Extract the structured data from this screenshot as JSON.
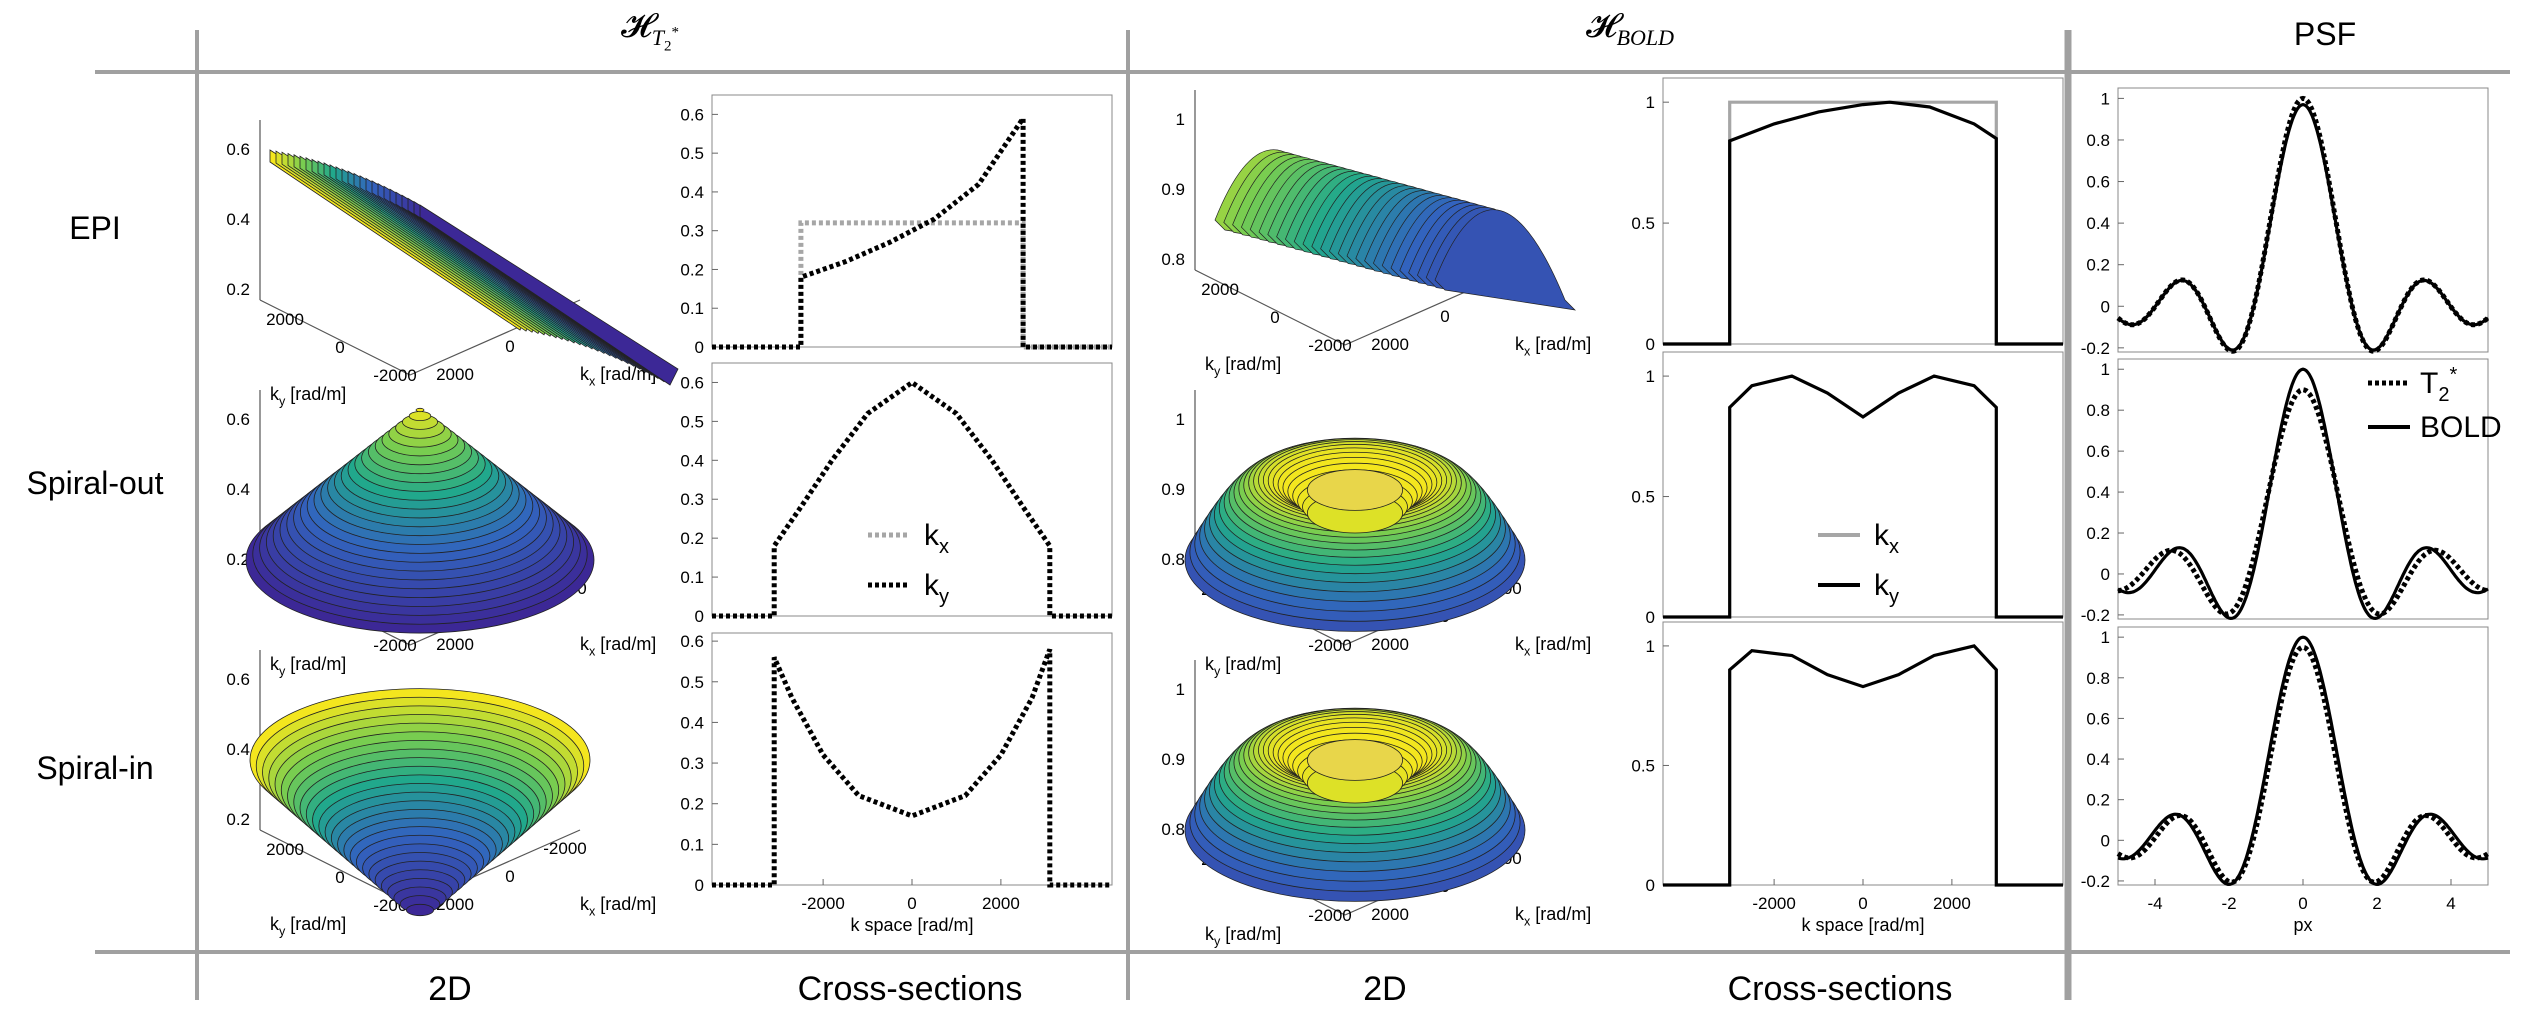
{
  "headers": {
    "col1_main": "𝓗",
    "col1_sub": "T",
    "col1_subsub": "2",
    "col1_sup": "*",
    "col2_main": "𝓗",
    "col2_sub": "BOLD",
    "col3": "PSF"
  },
  "rows": [
    "EPI",
    "Spiral-out",
    "Spiral-in"
  ],
  "footers": [
    "2D",
    "Cross-sections",
    "2D",
    "Cross-sections"
  ],
  "axis_labels": {
    "ky": "k",
    "ky_sub": "y",
    "kx": "k",
    "kx_sub": "x",
    "unit": "[rad/m]",
    "kspace": "k space [rad/m]",
    "px": "px"
  },
  "legend_t2": {
    "kx": "k",
    "kx_sub": "x",
    "ky": "k",
    "ky_sub": "y"
  },
  "legend_bold": {
    "kx": "k",
    "kx_sub": "x",
    "ky": "k",
    "ky_sub": "y"
  },
  "legend_psf": {
    "t2": "T",
    "t2_sub": "2",
    "t2_sup": "*",
    "bold": "BOLD"
  },
  "colors": {
    "grid": "#a0a0a0",
    "kx_gray": "#a6a6a6",
    "line": "#000000",
    "surf_low": "#3b2a98",
    "surf_mid": "#21a88c",
    "surf_high": "#f4e61e"
  },
  "chart_data": [
    {
      "id": "t2_epi_3d",
      "type": "surface",
      "shape": "ramp",
      "zticks": [
        0.2,
        0.4,
        0.6
      ],
      "xyticks": [
        2000,
        0,
        -2000
      ]
    },
    {
      "id": "t2_spiralout_3d",
      "type": "surface",
      "shape": "cone",
      "zticks": [
        0.2,
        0.4,
        0.6
      ],
      "xyticks": [
        2000,
        0,
        -2000
      ]
    },
    {
      "id": "t2_spiralin_3d",
      "type": "surface",
      "shape": "bowl",
      "zticks": [
        0.2,
        0.4,
        0.6
      ],
      "xyticks": [
        2000,
        0,
        -2000
      ]
    },
    {
      "id": "bold_epi_3d",
      "type": "surface",
      "shape": "ridge",
      "zticks": [
        0.8,
        0.9,
        1
      ],
      "xyticks": [
        2000,
        0,
        -2000
      ]
    },
    {
      "id": "bold_spiralout_3d",
      "type": "surface",
      "shape": "torus",
      "zticks": [
        0.8,
        0.9,
        1
      ],
      "xyticks": [
        2000,
        0,
        -2000
      ]
    },
    {
      "id": "bold_spiralin_3d",
      "type": "surface",
      "shape": "torus",
      "zticks": [
        0.8,
        0.9,
        1
      ],
      "xyticks": [
        2000,
        0,
        -2000
      ]
    },
    {
      "id": "t2_epi_cs",
      "type": "line",
      "xlim": [
        -4500,
        4500
      ],
      "ylim": [
        0,
        0.65
      ],
      "yticks": [
        0,
        0.1,
        0.2,
        0.3,
        0.4,
        0.5,
        0.6
      ],
      "series": [
        {
          "name": "kx",
          "style": "dotted-gray",
          "x": [
            -4500,
            -2500,
            -2500,
            2500,
            2500,
            4500
          ],
          "y": [
            0,
            0,
            0.32,
            0.32,
            0,
            0
          ]
        },
        {
          "name": "ky",
          "style": "dotted-black",
          "x": [
            -4500,
            -2500,
            -2500,
            -1500,
            -500,
            500,
            1500,
            2500,
            2500,
            4500
          ],
          "y": [
            0,
            0,
            0.18,
            0.22,
            0.27,
            0.33,
            0.42,
            0.59,
            0,
            0
          ]
        }
      ]
    },
    {
      "id": "t2_spiralout_cs",
      "type": "line",
      "xlim": [
        -4500,
        4500
      ],
      "ylim": [
        0,
        0.65
      ],
      "yticks": [
        0,
        0.1,
        0.2,
        0.3,
        0.4,
        0.5,
        0.6
      ],
      "series": [
        {
          "name": "ky",
          "style": "dotted-black",
          "x": [
            -4500,
            -3100,
            -3100,
            -2500,
            -1800,
            -1000,
            0,
            1000,
            1800,
            2500,
            3100,
            3100,
            4500
          ],
          "y": [
            0,
            0,
            0.18,
            0.28,
            0.4,
            0.52,
            0.6,
            0.52,
            0.4,
            0.28,
            0.18,
            0,
            0
          ]
        }
      ]
    },
    {
      "id": "t2_spiralin_cs",
      "type": "line",
      "xlim": [
        -4500,
        4500
      ],
      "ylim": [
        0,
        0.62
      ],
      "yticks": [
        0,
        0.1,
        0.2,
        0.3,
        0.4,
        0.5,
        0.6
      ],
      "xticks": [
        -2000,
        0,
        2000
      ],
      "xlabel": "k space [rad/m]",
      "series": [
        {
          "name": "ky",
          "style": "dotted-black",
          "x": [
            -4500,
            -3100,
            -3100,
            -2700,
            -2000,
            -1200,
            0,
            1200,
            2000,
            2700,
            3100,
            3100,
            4500
          ],
          "y": [
            0,
            0,
            0.56,
            0.46,
            0.32,
            0.22,
            0.17,
            0.22,
            0.32,
            0.46,
            0.58,
            0,
            0
          ]
        }
      ]
    },
    {
      "id": "bold_epi_cs",
      "type": "line",
      "xlim": [
        -4500,
        4500
      ],
      "ylim": [
        0,
        1.1
      ],
      "yticks": [
        0,
        0.5,
        1
      ],
      "series": [
        {
          "name": "kx",
          "style": "solid-gray",
          "x": [
            -4500,
            -3000,
            -3000,
            3000,
            3000,
            4500
          ],
          "y": [
            0,
            0,
            1,
            1,
            0,
            0
          ]
        },
        {
          "name": "ky",
          "style": "solid-black",
          "x": [
            -4500,
            -3000,
            -3000,
            -2000,
            -1000,
            0,
            600,
            1500,
            2500,
            3000,
            3000,
            4500
          ],
          "y": [
            0,
            0,
            0.84,
            0.91,
            0.96,
            0.99,
            1.0,
            0.98,
            0.91,
            0.85,
            0,
            0
          ]
        }
      ]
    },
    {
      "id": "bold_spiralout_cs",
      "type": "line",
      "xlim": [
        -4500,
        4500
      ],
      "ylim": [
        0,
        1.1
      ],
      "yticks": [
        0,
        0.5,
        1
      ],
      "series": [
        {
          "name": "ky",
          "style": "solid-black",
          "x": [
            -4500,
            -3000,
            -3000,
            -2500,
            -1600,
            -800,
            0,
            800,
            1600,
            2500,
            3000,
            3000,
            4500
          ],
          "y": [
            0,
            0,
            0.87,
            0.96,
            1.0,
            0.93,
            0.83,
            0.93,
            1.0,
            0.96,
            0.87,
            0,
            0
          ]
        }
      ]
    },
    {
      "id": "bold_spiralin_cs",
      "type": "line",
      "xlim": [
        -4500,
        4500
      ],
      "ylim": [
        0,
        1.1
      ],
      "yticks": [
        0,
        0.5,
        1
      ],
      "xticks": [
        -2000,
        0,
        2000
      ],
      "xlabel": "k space [rad/m]",
      "series": [
        {
          "name": "ky",
          "style": "solid-black",
          "x": [
            -4500,
            -3000,
            -3000,
            -2500,
            -1600,
            -800,
            0,
            800,
            1600,
            2500,
            3000,
            3000,
            4500
          ],
          "y": [
            0,
            0,
            0.9,
            0.98,
            0.96,
            0.88,
            0.83,
            0.88,
            0.96,
            1.0,
            0.9,
            0,
            0
          ]
        }
      ]
    },
    {
      "id": "psf_epi",
      "type": "line",
      "xlim": [
        -5,
        5
      ],
      "ylim": [
        -0.22,
        1.05
      ],
      "yticks": [
        -0.2,
        0,
        0.2,
        0.4,
        0.6,
        0.8,
        1
      ],
      "shape": "psf_epi"
    },
    {
      "id": "psf_spiralout",
      "type": "line",
      "xlim": [
        -5,
        5
      ],
      "ylim": [
        -0.22,
        1.05
      ],
      "yticks": [
        -0.2,
        0,
        0.2,
        0.4,
        0.6,
        0.8,
        1
      ],
      "shape": "psf_spiralout"
    },
    {
      "id": "psf_spiralin",
      "type": "line",
      "xlim": [
        -5,
        5
      ],
      "ylim": [
        -0.22,
        1.05
      ],
      "yticks": [
        -0.2,
        0,
        0.2,
        0.4,
        0.6,
        0.8,
        1
      ],
      "xticks": [
        -4,
        -2,
        0,
        2,
        4
      ],
      "xlabel": "px",
      "shape": "psf_spiralin"
    }
  ]
}
